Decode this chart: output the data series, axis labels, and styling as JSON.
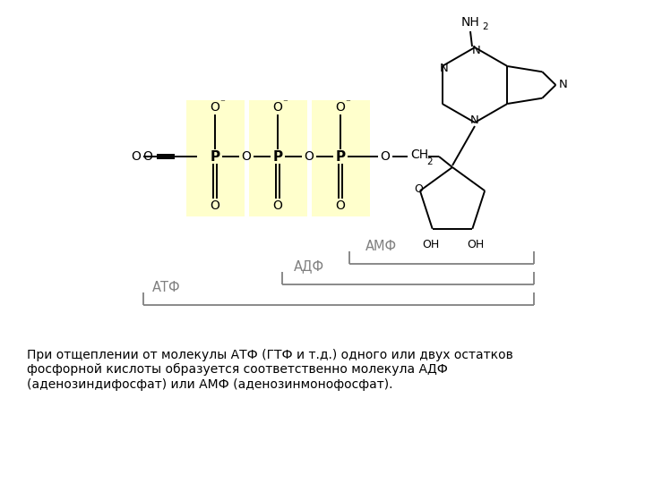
{
  "background_color": "#ffffff",
  "highlight_color": "#ffffcc",
  "line_color": "#000000",
  "label_color": "#808080",
  "description": "При отщеплении от молекулы АТФ (ГТФ и т.д.) одного или двух остатков\nфосфорной кислоты образуется соответственно молекула АДФ\n(аденозиндифосфат) или АМФ (аденозинмонофосфат).",
  "amf_label": "АМФ",
  "adf_label": "АДФ",
  "atf_label": "АТФ"
}
